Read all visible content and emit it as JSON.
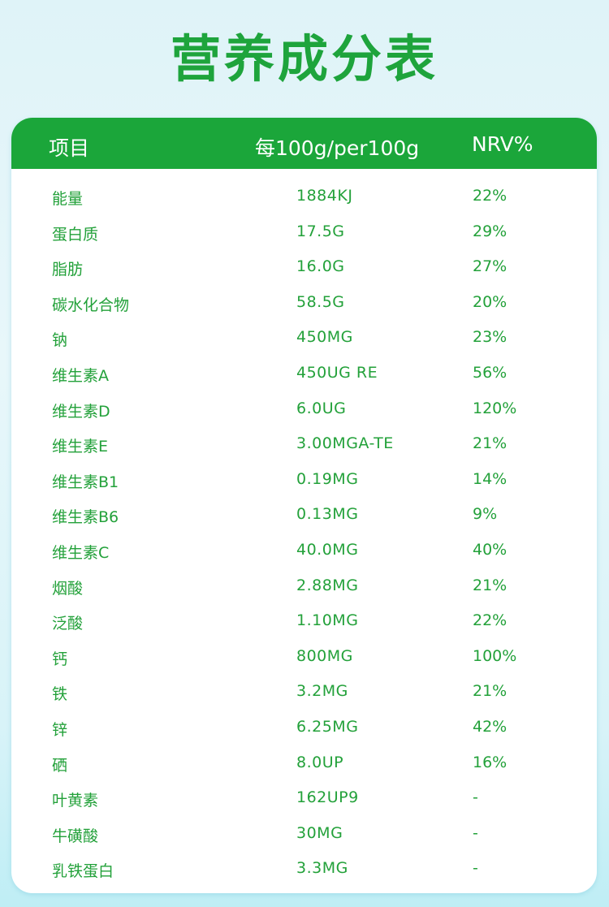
{
  "title": "营养成分表",
  "header": {
    "item": "项目",
    "per100g": "每100g/per100g",
    "nrv": "NRV%"
  },
  "rows": [
    {
      "name": "能量",
      "value": "1884KJ",
      "nrv": "22%"
    },
    {
      "name": "蛋白质",
      "value": "17.5G",
      "nrv": "29%"
    },
    {
      "name": "脂肪",
      "value": "16.0G",
      "nrv": "27%"
    },
    {
      "name": "碳水化合物",
      "value": "58.5G",
      "nrv": "20%"
    },
    {
      "name": "钠",
      "value": "450MG",
      "nrv": "23%"
    },
    {
      "name": "维生素A",
      "value": "450UG RE",
      "nrv": "56%"
    },
    {
      "name": "维生素D",
      "value": "6.0UG",
      "nrv": "120%"
    },
    {
      "name": "维生素E",
      "value": "3.00MGA-TE",
      "nrv": "21%"
    },
    {
      "name": "维生素B1",
      "value": "0.19MG",
      "nrv": "14%"
    },
    {
      "name": "维生素B6",
      "value": "0.13MG",
      "nrv": "9%"
    },
    {
      "name": "维生素C",
      "value": "40.0MG",
      "nrv": "40%"
    },
    {
      "name": "烟酸",
      "value": "2.88MG",
      "nrv": "21%"
    },
    {
      "name": "泛酸",
      "value": "1.10MG",
      "nrv": "22%"
    },
    {
      "name": "钙",
      "value": "800MG",
      "nrv": "100%"
    },
    {
      "name": "铁",
      "value": "3.2MG",
      "nrv": "21%"
    },
    {
      "name": "锌",
      "value": "6.25MG",
      "nrv": "42%"
    },
    {
      "name": "硒",
      "value": "8.0UP",
      "nrv": "16%"
    },
    {
      "name": "叶黄素",
      "value": "162UP9",
      "nrv": "-"
    },
    {
      "name": "牛磺酸",
      "value": "30MG",
      "nrv": "-"
    },
    {
      "name": "乳铁蛋白",
      "value": "3.3MG",
      "nrv": "-"
    }
  ],
  "colors": {
    "brand_green": "#1ba63a",
    "text_green": "#23a13a"
  }
}
